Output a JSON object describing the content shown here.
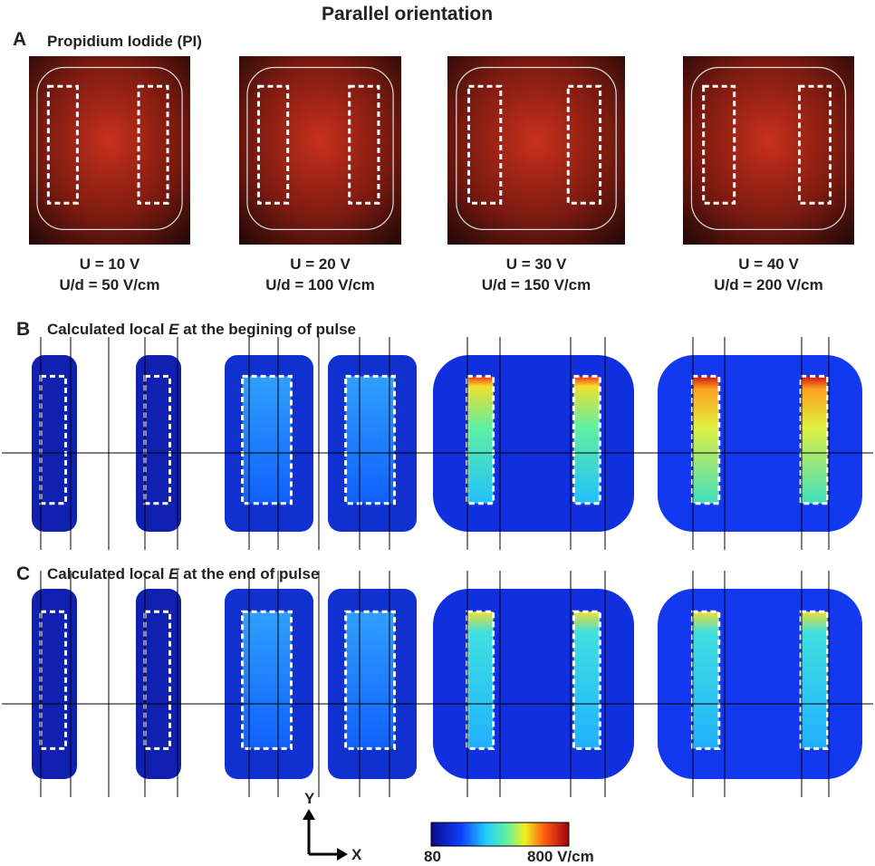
{
  "title": "Parallel orientation",
  "panels": [
    {
      "label": "A",
      "title": "Propidium Iodide (PI)",
      "captions": [
        {
          "voltage": "U = 10 V",
          "field": "U/d = 50 V/cm"
        },
        {
          "voltage": "U = 20 V",
          "field": "U/d = 100 V/cm"
        },
        {
          "voltage": "U = 30 V",
          "field": "U/d = 150 V/cm"
        },
        {
          "voltage": "U = 40 V",
          "field": "U/d = 200 V/cm"
        }
      ]
    },
    {
      "label": "B",
      "title_parts": [
        "Calculated local ",
        "E",
        " at the begining of pulse"
      ]
    },
    {
      "label": "C",
      "title_parts": [
        "Calculated local ",
        "E",
        " at the end of pulse"
      ]
    }
  ],
  "axes": {
    "y": "Y",
    "x": "X"
  },
  "colorbar": {
    "min_label": "80",
    "max_label": "800 V/cm"
  }
}
